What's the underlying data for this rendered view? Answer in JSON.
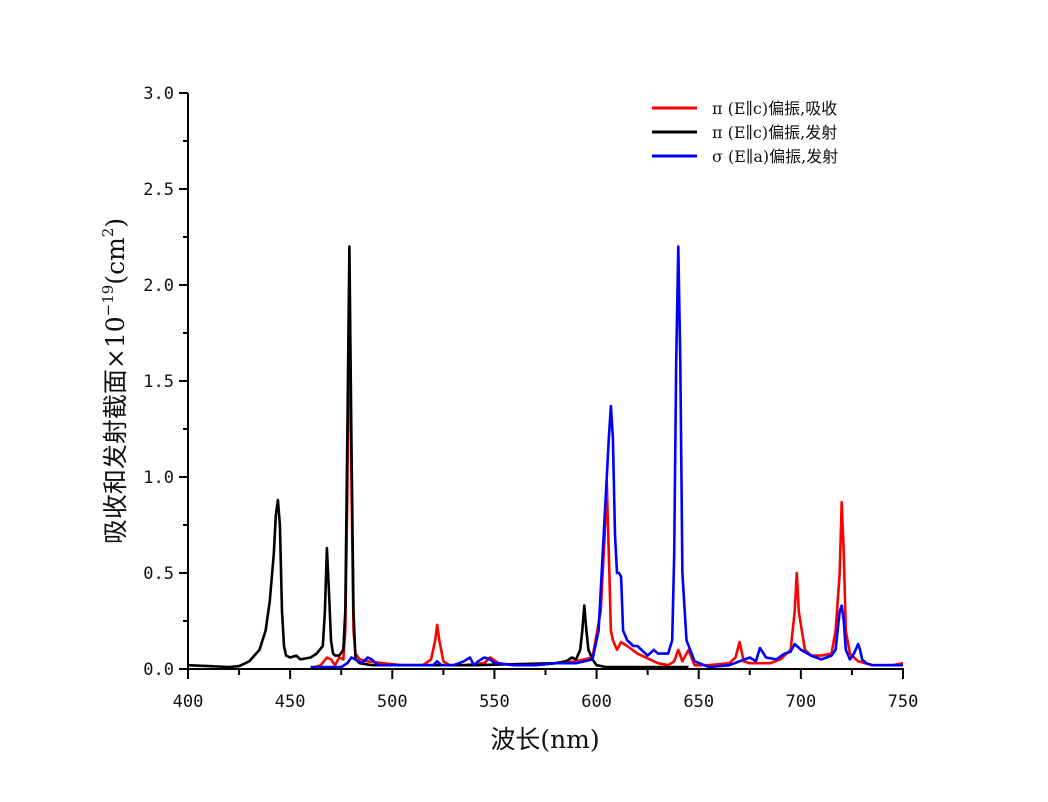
{
  "chart_data": {
    "type": "line",
    "title": "",
    "xlabel": "波长(nm)",
    "ylabel": "吸收和发射截面×10⁻¹⁹(cm²)",
    "ylabel_parts": {
      "main": "吸收和发射截面×10",
      "exp": "−19",
      "unit_open": "(cm",
      "unit_exp": "2",
      "unit_close": ")"
    },
    "xlim": [
      400,
      750
    ],
    "ylim": [
      0,
      3.0
    ],
    "x_ticks": [
      "400",
      "450",
      "500",
      "550",
      "600",
      "650",
      "700",
      "750"
    ],
    "y_ticks": [
      "0.0",
      "0.5",
      "1.0",
      "1.5",
      "2.0",
      "2.5",
      "3.0"
    ],
    "grid": false,
    "legend_position": "upper right",
    "series": [
      {
        "name": "π (E∥c)偏振,吸收",
        "color": "#ff0000",
        "x": [
          462,
          465,
          468,
          470,
          472,
          474,
          476,
          477,
          478,
          479,
          480,
          481,
          482,
          484,
          488,
          495,
          505,
          515,
          519,
          521,
          522,
          523,
          525,
          528,
          535,
          545,
          548,
          552,
          560,
          570,
          580,
          590,
          598,
          602,
          604,
          605,
          606,
          607,
          608,
          610,
          612,
          615,
          620,
          630,
          635,
          638,
          640,
          642,
          645,
          648,
          655,
          665,
          668,
          670,
          672,
          675,
          685,
          690,
          695,
          697,
          698,
          699,
          702,
          705,
          710,
          715,
          717,
          719,
          720,
          721,
          722,
          724,
          728,
          735,
          745,
          750
        ],
        "values": [
          0.01,
          0.02,
          0.06,
          0.05,
          0.02,
          0.06,
          0.05,
          0.2,
          0.9,
          1.97,
          1.0,
          0.2,
          0.08,
          0.05,
          0.04,
          0.03,
          0.02,
          0.02,
          0.05,
          0.15,
          0.23,
          0.15,
          0.04,
          0.02,
          0.02,
          0.03,
          0.06,
          0.03,
          0.02,
          0.02,
          0.03,
          0.04,
          0.06,
          0.3,
          0.7,
          0.97,
          0.6,
          0.2,
          0.15,
          0.1,
          0.14,
          0.12,
          0.08,
          0.03,
          0.02,
          0.04,
          0.1,
          0.04,
          0.1,
          0.02,
          0.02,
          0.03,
          0.06,
          0.14,
          0.04,
          0.03,
          0.03,
          0.05,
          0.1,
          0.3,
          0.5,
          0.3,
          0.1,
          0.07,
          0.07,
          0.08,
          0.2,
          0.5,
          0.87,
          0.6,
          0.2,
          0.08,
          0.04,
          0.02,
          0.02,
          0.03
        ]
      },
      {
        "name": "π (E∥c)偏振,发射",
        "color": "#000000",
        "x": [
          400,
          410,
          420,
          425,
          430,
          435,
          438,
          440,
          442,
          443,
          444,
          445,
          446,
          447,
          448,
          450,
          453,
          455,
          460,
          463,
          466,
          467,
          468,
          469,
          470,
          471,
          472,
          474,
          476,
          477,
          478,
          479,
          480,
          481,
          482,
          484,
          490,
          500,
          520,
          540,
          560,
          580,
          585,
          588,
          590,
          592,
          593,
          594,
          595,
          596,
          598,
          600,
          605,
          620,
          640,
          645
        ],
        "values": [
          0.02,
          0.015,
          0.01,
          0.015,
          0.04,
          0.1,
          0.2,
          0.35,
          0.6,
          0.8,
          0.88,
          0.75,
          0.3,
          0.12,
          0.07,
          0.06,
          0.07,
          0.05,
          0.06,
          0.08,
          0.12,
          0.3,
          0.63,
          0.4,
          0.15,
          0.08,
          0.07,
          0.07,
          0.1,
          0.3,
          1.2,
          2.2,
          1.2,
          0.3,
          0.05,
          0.03,
          0.02,
          0.02,
          0.02,
          0.02,
          0.025,
          0.03,
          0.04,
          0.06,
          0.05,
          0.1,
          0.2,
          0.33,
          0.2,
          0.1,
          0.05,
          0.02,
          0.01,
          0.01,
          0.01,
          0.01
        ]
      },
      {
        "name": "σ (E∥a)偏振,发射",
        "color": "#0000ff",
        "x": [
          460,
          470,
          475,
          478,
          480,
          482,
          485,
          488,
          490,
          493,
          496,
          500,
          510,
          520,
          522,
          524,
          526,
          530,
          535,
          538,
          540,
          542,
          545,
          548,
          550,
          560,
          570,
          580,
          590,
          598,
          601,
          603,
          605,
          606,
          607,
          608,
          609,
          610,
          611,
          612,
          613,
          615,
          618,
          620,
          625,
          628,
          630,
          635,
          637,
          638,
          639,
          640,
          641,
          642,
          644,
          648,
          655,
          665,
          670,
          675,
          678,
          680,
          683,
          688,
          692,
          695,
          697,
          700,
          705,
          710,
          715,
          717,
          718,
          719,
          720,
          721,
          722,
          724,
          726,
          728,
          729,
          730,
          732,
          735,
          745,
          750
        ],
        "values": [
          0.01,
          0.01,
          0.01,
          0.03,
          0.06,
          0.05,
          0.03,
          0.06,
          0.05,
          0.02,
          0.02,
          0.02,
          0.02,
          0.02,
          0.04,
          0.02,
          0.02,
          0.02,
          0.04,
          0.06,
          0.02,
          0.04,
          0.06,
          0.05,
          0.03,
          0.02,
          0.02,
          0.03,
          0.03,
          0.05,
          0.2,
          0.6,
          1.0,
          1.2,
          1.37,
          1.2,
          0.7,
          0.5,
          0.5,
          0.48,
          0.2,
          0.15,
          0.12,
          0.12,
          0.07,
          0.1,
          0.08,
          0.08,
          0.15,
          0.6,
          1.6,
          2.2,
          1.6,
          0.5,
          0.15,
          0.04,
          0.01,
          0.02,
          0.04,
          0.06,
          0.04,
          0.11,
          0.06,
          0.05,
          0.08,
          0.09,
          0.13,
          0.1,
          0.07,
          0.05,
          0.07,
          0.1,
          0.2,
          0.3,
          0.33,
          0.25,
          0.1,
          0.05,
          0.08,
          0.13,
          0.1,
          0.05,
          0.03,
          0.02,
          0.02,
          0.02
        ]
      }
    ]
  }
}
